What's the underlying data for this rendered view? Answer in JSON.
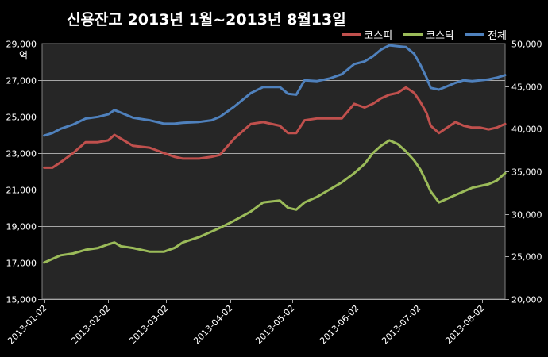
{
  "chart_data": {
    "type": "line",
    "title": "신용잔고 2013년 1월~2013년 8월13일",
    "y_left_unit": "억",
    "x_tick_labels": [
      "2013-01-02",
      "2013-02-02",
      "2013-03-02",
      "2013-04-02",
      "2013-05-02",
      "2013-06-02",
      "2013-07-02",
      "2013-08-02"
    ],
    "x_range": [
      "2013-01-01",
      "2013-08-13"
    ],
    "y_left": {
      "range": [
        15000,
        29000
      ],
      "ticks": [
        "15,000",
        "17,000",
        "19,000",
        "21,000",
        "23,000",
        "25,000",
        "27,000",
        "29,000"
      ]
    },
    "y_right": {
      "range": [
        20000,
        50000
      ],
      "ticks": [
        "20,000",
        "25,000",
        "30,000",
        "35,000",
        "40,000",
        "45,000",
        "50,000"
      ]
    },
    "grid": true,
    "legend_position": "top-right",
    "series": [
      {
        "name": "코스피",
        "axis": "left",
        "color": "#c0504d",
        "points": [
          [
            "2013-01-02",
            22200
          ],
          [
            "2013-01-06",
            22200
          ],
          [
            "2013-01-10",
            22500
          ],
          [
            "2013-01-16",
            23000
          ],
          [
            "2013-01-22",
            23600
          ],
          [
            "2013-01-28",
            23600
          ],
          [
            "2013-02-02",
            23700
          ],
          [
            "2013-02-05",
            24000
          ],
          [
            "2013-02-08",
            23800
          ],
          [
            "2013-02-14",
            23400
          ],
          [
            "2013-02-22",
            23300
          ],
          [
            "2013-03-01",
            23000
          ],
          [
            "2013-03-06",
            22800
          ],
          [
            "2013-03-10",
            22700
          ],
          [
            "2013-03-18",
            22700
          ],
          [
            "2013-03-24",
            22800
          ],
          [
            "2013-03-28",
            22900
          ],
          [
            "2013-04-04",
            23800
          ],
          [
            "2013-04-12",
            24600
          ],
          [
            "2013-04-18",
            24700
          ],
          [
            "2013-04-26",
            24500
          ],
          [
            "2013-04-30",
            24100
          ],
          [
            "2013-05-04",
            24100
          ],
          [
            "2013-05-08",
            24800
          ],
          [
            "2013-05-14",
            24900
          ],
          [
            "2013-05-20",
            24900
          ],
          [
            "2013-05-26",
            24900
          ],
          [
            "2013-06-01",
            25700
          ],
          [
            "2013-06-06",
            25500
          ],
          [
            "2013-06-10",
            25700
          ],
          [
            "2013-06-14",
            26000
          ],
          [
            "2013-06-18",
            26200
          ],
          [
            "2013-06-22",
            26300
          ],
          [
            "2013-06-26",
            26600
          ],
          [
            "2013-06-30",
            26300
          ],
          [
            "2013-07-03",
            25800
          ],
          [
            "2013-07-06",
            25200
          ],
          [
            "2013-07-08",
            24500
          ],
          [
            "2013-07-12",
            24100
          ],
          [
            "2013-07-16",
            24400
          ],
          [
            "2013-07-20",
            24700
          ],
          [
            "2013-07-24",
            24500
          ],
          [
            "2013-07-28",
            24400
          ],
          [
            "2013-08-01",
            24400
          ],
          [
            "2013-08-05",
            24300
          ],
          [
            "2013-08-09",
            24400
          ],
          [
            "2013-08-13",
            24600
          ]
        ]
      },
      {
        "name": "코스닥",
        "axis": "left",
        "color": "#9bbb59",
        "points": [
          [
            "2013-01-02",
            17000
          ],
          [
            "2013-01-06",
            17200
          ],
          [
            "2013-01-10",
            17400
          ],
          [
            "2013-01-16",
            17500
          ],
          [
            "2013-01-22",
            17700
          ],
          [
            "2013-01-28",
            17800
          ],
          [
            "2013-02-02",
            18000
          ],
          [
            "2013-02-05",
            18100
          ],
          [
            "2013-02-08",
            17900
          ],
          [
            "2013-02-14",
            17800
          ],
          [
            "2013-02-22",
            17600
          ],
          [
            "2013-03-01",
            17600
          ],
          [
            "2013-03-06",
            17800
          ],
          [
            "2013-03-10",
            18100
          ],
          [
            "2013-03-18",
            18400
          ],
          [
            "2013-03-24",
            18700
          ],
          [
            "2013-03-28",
            18900
          ],
          [
            "2013-04-04",
            19300
          ],
          [
            "2013-04-12",
            19800
          ],
          [
            "2013-04-18",
            20300
          ],
          [
            "2013-04-26",
            20400
          ],
          [
            "2013-04-30",
            20000
          ],
          [
            "2013-05-04",
            19900
          ],
          [
            "2013-05-08",
            20300
          ],
          [
            "2013-05-14",
            20600
          ],
          [
            "2013-05-20",
            21000
          ],
          [
            "2013-05-26",
            21400
          ],
          [
            "2013-06-01",
            21900
          ],
          [
            "2013-06-06",
            22400
          ],
          [
            "2013-06-10",
            23000
          ],
          [
            "2013-06-14",
            23400
          ],
          [
            "2013-06-18",
            23700
          ],
          [
            "2013-06-22",
            23500
          ],
          [
            "2013-06-26",
            23100
          ],
          [
            "2013-06-30",
            22600
          ],
          [
            "2013-07-03",
            22100
          ],
          [
            "2013-07-06",
            21400
          ],
          [
            "2013-07-08",
            20900
          ],
          [
            "2013-07-12",
            20300
          ],
          [
            "2013-07-16",
            20500
          ],
          [
            "2013-07-20",
            20700
          ],
          [
            "2013-07-24",
            20900
          ],
          [
            "2013-07-28",
            21100
          ],
          [
            "2013-08-01",
            21200
          ],
          [
            "2013-08-05",
            21300
          ],
          [
            "2013-08-09",
            21500
          ],
          [
            "2013-08-13",
            21900
          ]
        ]
      },
      {
        "name": "전체",
        "axis": "right",
        "color": "#4f81bd",
        "points": [
          [
            "2013-01-02",
            39200
          ],
          [
            "2013-01-06",
            39500
          ],
          [
            "2013-01-10",
            40000
          ],
          [
            "2013-01-16",
            40500
          ],
          [
            "2013-01-22",
            41200
          ],
          [
            "2013-01-28",
            41400
          ],
          [
            "2013-02-02",
            41700
          ],
          [
            "2013-02-05",
            42200
          ],
          [
            "2013-02-08",
            41900
          ],
          [
            "2013-02-14",
            41300
          ],
          [
            "2013-02-22",
            41000
          ],
          [
            "2013-03-01",
            40600
          ],
          [
            "2013-03-06",
            40600
          ],
          [
            "2013-03-10",
            40700
          ],
          [
            "2013-03-18",
            40800
          ],
          [
            "2013-03-24",
            41000
          ],
          [
            "2013-03-28",
            41400
          ],
          [
            "2013-04-04",
            42600
          ],
          [
            "2013-04-12",
            44200
          ],
          [
            "2013-04-18",
            44900
          ],
          [
            "2013-04-26",
            44900
          ],
          [
            "2013-04-30",
            44100
          ],
          [
            "2013-05-04",
            44000
          ],
          [
            "2013-05-08",
            45700
          ],
          [
            "2013-05-14",
            45600
          ],
          [
            "2013-05-20",
            45900
          ],
          [
            "2013-05-26",
            46400
          ],
          [
            "2013-06-01",
            47600
          ],
          [
            "2013-06-06",
            47900
          ],
          [
            "2013-06-10",
            48500
          ],
          [
            "2013-06-14",
            49300
          ],
          [
            "2013-06-18",
            49800
          ],
          [
            "2013-06-22",
            49700
          ],
          [
            "2013-06-26",
            49600
          ],
          [
            "2013-06-30",
            48800
          ],
          [
            "2013-07-03",
            47500
          ],
          [
            "2013-07-06",
            46000
          ],
          [
            "2013-07-08",
            44800
          ],
          [
            "2013-07-12",
            44600
          ],
          [
            "2013-07-16",
            45000
          ],
          [
            "2013-07-20",
            45400
          ],
          [
            "2013-07-24",
            45700
          ],
          [
            "2013-07-28",
            45600
          ],
          [
            "2013-08-01",
            45700
          ],
          [
            "2013-08-05",
            45800
          ],
          [
            "2013-08-09",
            46000
          ],
          [
            "2013-08-13",
            46300
          ]
        ]
      }
    ]
  }
}
